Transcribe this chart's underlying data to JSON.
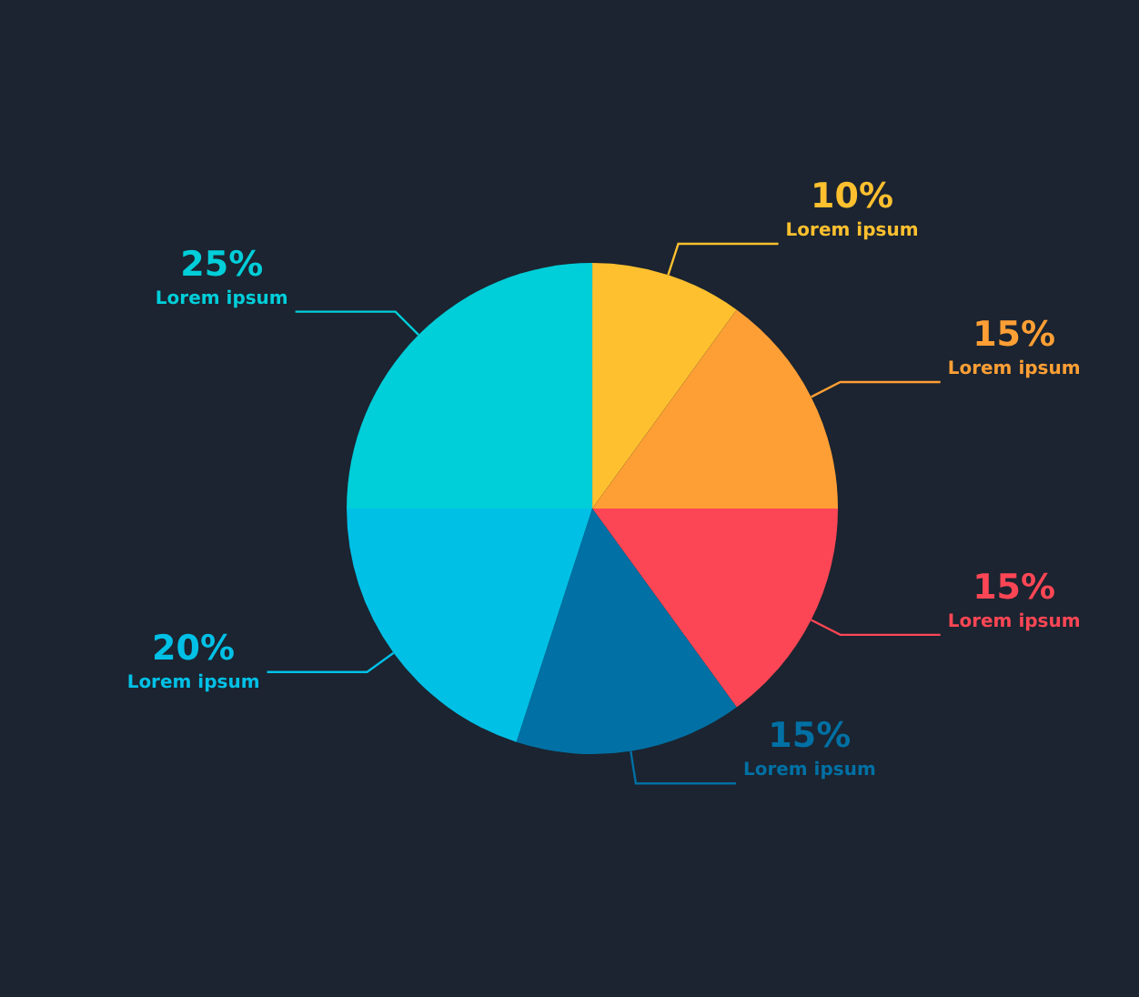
{
  "chart_data": {
    "type": "pie",
    "categories": [
      "Lorem ipsum",
      "Lorem ipsum",
      "Lorem ipsum",
      "Lorem ipsum",
      "Lorem ipsum",
      "Lorem ipsum"
    ],
    "values": [
      10,
      15,
      15,
      15,
      20,
      25
    ],
    "value_labels": [
      "10%",
      "15%",
      "15%",
      "15%",
      "20%",
      "25%"
    ],
    "colors": [
      "#fec02f",
      "#fe9f35",
      "#fd4655",
      "#0170a4",
      "#01c0e6",
      "#00ced9"
    ],
    "legend": false
  }
}
